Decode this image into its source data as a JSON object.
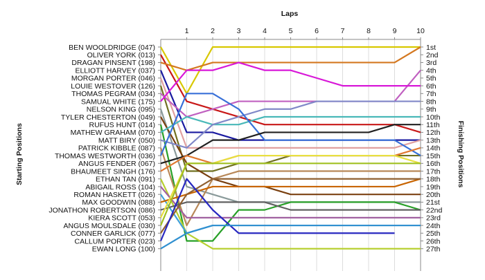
{
  "chart_data": {
    "type": "line",
    "title": "",
    "xlabel": "Laps",
    "ylabel_left": "Starting Positions",
    "ylabel_right": "Finishing Positions",
    "x": [
      0,
      1,
      2,
      3,
      4,
      5,
      6,
      7,
      8,
      9,
      10
    ],
    "x_tick_labels": [
      "1",
      "2",
      "3",
      "4",
      "5",
      "6",
      "7",
      "8",
      "9",
      "10"
    ],
    "finishing_labels": [
      "1st",
      "2nd",
      "3rd",
      "4th",
      "5th",
      "6th",
      "7th",
      "8th",
      "9th",
      "10th",
      "11th",
      "12th",
      "13th",
      "14th",
      "15th",
      "16th",
      "17th",
      "18th",
      "19th",
      "20th",
      "21st",
      "22nd",
      "23rd",
      "24th",
      "25th",
      "26th",
      "27th"
    ],
    "series": [
      {
        "name": "BEN WOOLDRIDGE (047)",
        "color": "#d8c800",
        "positions": [
          1,
          7,
          1,
          1,
          1,
          1,
          1,
          1,
          1,
          1,
          1
        ]
      },
      {
        "name": "OLIVER YORK (013)",
        "color": "#c81818",
        "positions": [
          2,
          8,
          9,
          10,
          11,
          11,
          11,
          11,
          11,
          11,
          12
        ]
      },
      {
        "name": "DRAGAN PINSENT (198)",
        "color": "#d47820",
        "positions": [
          3,
          4,
          3,
          3,
          3,
          3,
          3,
          3,
          3,
          3,
          1
        ]
      },
      {
        "name": "ELLIOTT HARVEY (037)",
        "color": "#1a1aa0",
        "positions": [
          4,
          12,
          12,
          13,
          13,
          13,
          13,
          13,
          13,
          13,
          13
        ]
      },
      {
        "name": "MORGAN PORTER (046)",
        "color": "#e0a0a0",
        "positions": [
          5,
          14,
          14,
          14,
          14,
          14,
          14,
          14,
          14,
          14,
          13
        ]
      },
      {
        "name": "LOUIE WESTOVER (126)",
        "color": "#707020",
        "positions": [
          6,
          17,
          17,
          16,
          16,
          15,
          15,
          15,
          15,
          15,
          15
        ]
      },
      {
        "name": "THOMAS PEGRAM (034)",
        "color": "#c060c0",
        "positions": [
          7,
          10,
          9,
          8,
          8,
          8,
          8,
          8,
          8,
          8,
          4
        ]
      },
      {
        "name": "SAMUAL WHITE (175)",
        "color": "#d818d8",
        "positions": [
          8,
          4,
          4,
          3,
          4,
          4,
          5,
          6,
          6,
          6,
          6
        ]
      },
      {
        "name": "NELSON KING (095)",
        "color": "#8a9a9a",
        "positions": [
          9,
          19,
          20,
          21,
          21,
          21,
          21,
          21,
          21,
          21,
          21
        ]
      },
      {
        "name": "TYLER CHESTERTON (049)",
        "color": "#7a4010",
        "positions": [
          10,
          16,
          18,
          19,
          19,
          20,
          20,
          20,
          20,
          20,
          20
        ]
      },
      {
        "name": "RUFUS HUNT (014)",
        "color": "#28a028",
        "positions": [
          11,
          26,
          26,
          22,
          22,
          21,
          21,
          21,
          21,
          21,
          22
        ]
      },
      {
        "name": "MATHEW GRAHAM (070)",
        "color": "#48b8b8",
        "positions": [
          12,
          10,
          11,
          11,
          10,
          10,
          10,
          10,
          10,
          10,
          10
        ]
      },
      {
        "name": "MATT BIRY (050)",
        "color": "#8088c8",
        "positions": [
          13,
          14,
          11,
          10,
          9,
          9,
          8,
          8,
          8,
          8,
          8
        ]
      },
      {
        "name": "PATRICK KIBBLE (087)",
        "color": "#b88858",
        "positions": [
          14,
          24,
          18,
          17,
          17,
          17,
          17,
          17,
          17,
          17,
          17
        ]
      },
      {
        "name": "THOMAS WESTWORTH (036)",
        "color": "#3870d8",
        "positions": [
          15,
          7,
          7,
          9,
          13,
          13,
          13,
          13,
          13,
          13,
          15
        ]
      },
      {
        "name": "ANGUS FENDER (067)",
        "color": "#202020",
        "positions": [
          16,
          15,
          13,
          13,
          12,
          12,
          12,
          12,
          12,
          11,
          11
        ]
      },
      {
        "name": "BHAUMEET SINGH (176)",
        "color": "#e07830",
        "positions": [
          17,
          15,
          16,
          15,
          15,
          15,
          15,
          15,
          15,
          15,
          14
        ]
      },
      {
        "name": "ETHAN TAN (091)",
        "color": "#b8d030",
        "positions": [
          18,
          25,
          27,
          27,
          27,
          27,
          27,
          27,
          27,
          27,
          27
        ]
      },
      {
        "name": "ABIGAIL ROSS (104)",
        "color": "#a060a0",
        "positions": [
          19,
          23,
          23,
          23,
          23,
          23,
          23,
          23,
          23,
          23,
          23
        ]
      },
      {
        "name": "ROMAN HASKETT (026)",
        "color": "#40a0d8",
        "positions": [
          20,
          25,
          24,
          24,
          24,
          24,
          24,
          24,
          24,
          24,
          24
        ]
      },
      {
        "name": "MAX GOODWIN (088)",
        "color": "#c86400",
        "positions": [
          21,
          20,
          19,
          19,
          19,
          19,
          19,
          19,
          19,
          19,
          18
        ]
      },
      {
        "name": "JONATHON ROBERTSON (086)",
        "color": "#606060",
        "positions": [
          22,
          21,
          21,
          21,
          21,
          22,
          22,
          22,
          22,
          22,
          22
        ]
      },
      {
        "name": "KIERA SCOTT (053)",
        "color": "#e8e040",
        "positions": [
          23,
          16,
          16,
          15,
          15,
          15,
          15,
          15,
          15,
          15,
          16
        ]
      },
      {
        "name": "ANGUS MOULSDALE (030)",
        "color": "#a0c020",
        "positions": [
          24,
          16,
          16,
          16,
          16,
          16,
          16,
          16,
          16,
          16,
          16
        ]
      },
      {
        "name": "CONNER GARLICK (077)",
        "color": "#906030",
        "positions": [
          25,
          20,
          18,
          18,
          18,
          18,
          18,
          18,
          18,
          18,
          18
        ]
      },
      {
        "name": "CALLUM PORTER (023)",
        "color": "#2828c0",
        "positions": [
          26,
          18,
          22,
          25,
          25,
          25,
          25,
          25,
          25,
          25,
          null
        ]
      },
      {
        "name": "EWAN LONG (100)",
        "color": "#3090d0",
        "positions": [
          27,
          25,
          24,
          24,
          24,
          24,
          24,
          24,
          24,
          24,
          24
        ]
      }
    ]
  }
}
